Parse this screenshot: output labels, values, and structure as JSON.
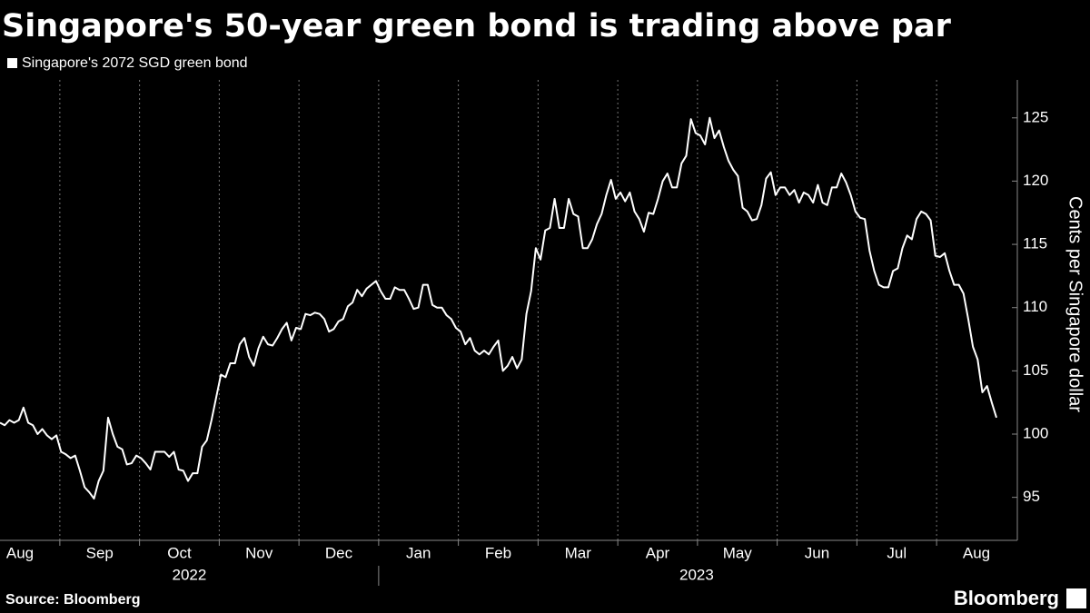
{
  "chart_data": {
    "type": "line",
    "title": "Singapore's 50-year green bond is trading above par",
    "source": "Source: Bloomberg",
    "brand": "Bloomberg",
    "y_label": "Cents per Singapore dollar",
    "months": [
      "Aug",
      "Sep",
      "Oct",
      "Nov",
      "Dec",
      "Jan",
      "Feb",
      "Mar",
      "Apr",
      "May",
      "Jun",
      "Jul",
      "Aug"
    ],
    "years": [
      "2022",
      "2023"
    ],
    "ylim": [
      91.6,
      128
    ],
    "yticks": [
      95,
      100,
      105,
      110,
      115,
      120,
      125
    ],
    "series": [
      {
        "name": "Singapore's 2072 SGD green bond",
        "color": "#ffffff",
        "values": [
          100.9,
          100.7,
          101.1,
          100.9,
          101.1,
          102.1,
          100.9,
          100.7,
          100.0,
          100.4,
          99.9,
          99.6,
          99.9,
          98.6,
          98.4,
          98.1,
          98.3,
          97.1,
          95.8,
          95.4,
          94.9,
          96.3,
          97.1,
          101.3,
          100.0,
          99.0,
          98.8,
          97.6,
          97.7,
          98.3,
          98.1,
          97.7,
          97.2,
          98.6,
          98.6,
          98.6,
          98.2,
          98.6,
          97.2,
          97.1,
          96.3,
          96.9,
          96.9,
          99.0,
          99.5,
          101.1,
          102.9,
          104.7,
          104.5,
          105.6,
          105.6,
          107.1,
          107.6,
          106.1,
          105.4,
          106.8,
          107.7,
          107.1,
          107.0,
          107.6,
          108.3,
          108.8,
          107.4,
          108.4,
          108.3,
          109.5,
          109.4,
          109.6,
          109.5,
          109.1,
          108.1,
          108.3,
          108.9,
          109.1,
          110.1,
          110.4,
          111.4,
          110.9,
          111.5,
          111.8,
          112.1,
          111.3,
          110.7,
          110.7,
          111.6,
          111.4,
          111.4,
          110.7,
          109.9,
          110.0,
          111.8,
          111.8,
          110.2,
          110.0,
          110.0,
          109.4,
          109.1,
          108.4,
          108.1,
          107.1,
          107.6,
          106.6,
          106.3,
          106.6,
          106.3,
          106.9,
          107.4,
          105.0,
          105.4,
          106.1,
          105.2,
          105.9,
          109.5,
          111.3,
          114.7,
          113.8,
          116.1,
          116.3,
          118.6,
          116.3,
          116.3,
          118.6,
          117.4,
          117.2,
          114.7,
          114.7,
          115.4,
          116.6,
          117.4,
          118.9,
          120.1,
          118.6,
          119.1,
          118.4,
          119.1,
          117.6,
          117.0,
          116.0,
          117.5,
          117.4,
          118.6,
          120.0,
          120.6,
          119.5,
          119.5,
          121.4,
          122.0,
          124.9,
          123.8,
          123.6,
          122.9,
          125.0,
          123.4,
          124.0,
          122.7,
          121.6,
          120.9,
          120.4,
          117.9,
          117.6,
          116.9,
          117.0,
          118.1,
          120.2,
          120.7,
          118.9,
          119.5,
          119.5,
          118.9,
          119.3,
          118.3,
          119.1,
          118.9,
          118.3,
          119.7,
          118.3,
          118.1,
          119.5,
          119.5,
          120.6,
          119.9,
          118.9,
          117.6,
          117.1,
          117.0,
          114.5,
          112.9,
          111.8,
          111.6,
          111.6,
          112.9,
          113.1,
          114.7,
          115.7,
          115.4,
          117.0,
          117.6,
          117.4,
          116.9,
          114.1,
          114.0,
          114.3,
          112.9,
          111.8,
          111.8,
          111.1,
          109.1,
          106.9,
          105.9,
          103.3,
          103.8,
          102.5,
          101.3
        ]
      }
    ]
  }
}
